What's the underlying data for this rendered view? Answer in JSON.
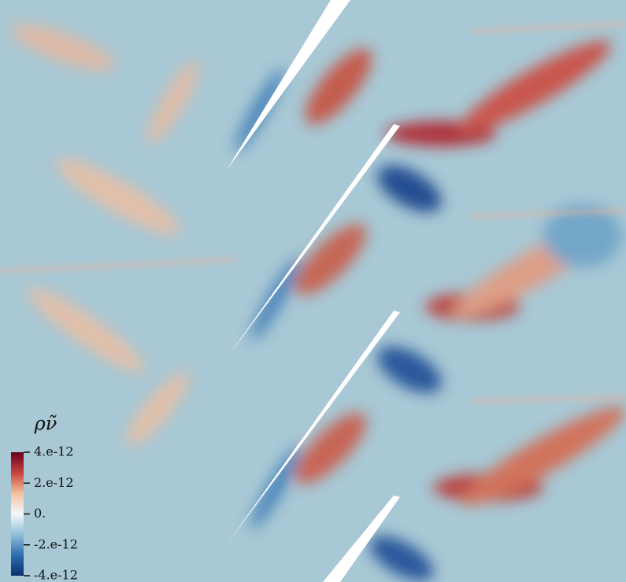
{
  "chart_data": {
    "type": "colorbar",
    "title": "ρν̃",
    "colors": [
      "#08306b",
      "#2f6eb0",
      "#8fc0d8",
      "#f4f7fa",
      "#f2c2a0",
      "#c8443a",
      "#67001f"
    ],
    "lim": [
      -4e-12,
      4e-12
    ],
    "ticks": [
      {
        "value": 4e-12,
        "label": "4.e-12"
      },
      {
        "value": 2e-12,
        "label": "2.e-12"
      },
      {
        "value": 0,
        "label": "0."
      },
      {
        "value": -2e-12,
        "label": "-2.e-12"
      },
      {
        "value": -4e-12,
        "label": "-4.e-12"
      }
    ]
  }
}
